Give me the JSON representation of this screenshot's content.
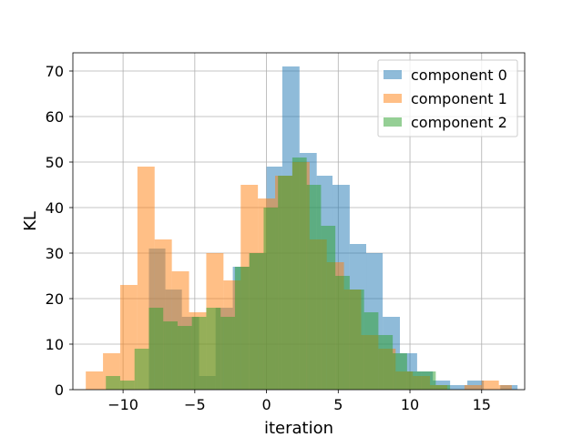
{
  "chart_data": {
    "type": "histogram",
    "title": "",
    "xlabel": "iteration",
    "ylabel": "KL",
    "xlim": [
      -13.5,
      18.0
    ],
    "ylim": [
      0,
      74
    ],
    "x_ticks": [
      -10,
      -5,
      0,
      5,
      10,
      15
    ],
    "x_tick_labels": [
      "−10",
      "−5",
      "0",
      "5",
      "10",
      "15"
    ],
    "y_ticks": [
      0,
      10,
      20,
      30,
      40,
      50,
      60,
      70
    ],
    "y_tick_labels": [
      "0",
      "10",
      "20",
      "30",
      "40",
      "50",
      "60",
      "70"
    ],
    "grid": true,
    "legend_position": "top-right",
    "series": [
      {
        "name": "component 0",
        "color": "#1f77b4",
        "alpha": 0.5,
        "bins": [
          [
            -8.2,
            -7.05,
            31
          ],
          [
            -7.05,
            -5.9,
            22
          ],
          [
            -5.9,
            -4.7,
            16
          ],
          [
            -4.7,
            -3.55,
            3
          ],
          [
            -3.55,
            -2.35,
            18
          ],
          [
            -2.35,
            -1.2,
            27
          ],
          [
            -1.2,
            0,
            30
          ],
          [
            0,
            1.1,
            49
          ],
          [
            1.1,
            2.3,
            71
          ],
          [
            2.3,
            3.5,
            52
          ],
          [
            3.5,
            4.6,
            47
          ],
          [
            4.6,
            5.8,
            45
          ],
          [
            5.8,
            6.95,
            32
          ],
          [
            6.95,
            8.1,
            30
          ],
          [
            8.1,
            9.3,
            16
          ],
          [
            9.3,
            10.5,
            8
          ],
          [
            10.5,
            11.6,
            4
          ],
          [
            11.6,
            12.8,
            2
          ],
          [
            12.8,
            14.0,
            1
          ],
          [
            14.0,
            15.15,
            2
          ],
          [
            15.15,
            16.3,
            0
          ],
          [
            16.3,
            17.5,
            1
          ]
        ]
      },
      {
        "name": "component 1",
        "color": "#ff7f0e",
        "alpha": 0.5,
        "bins": [
          [
            -12.6,
            -11.4,
            4
          ],
          [
            -11.4,
            -10.2,
            8
          ],
          [
            -10.2,
            -9.0,
            23
          ],
          [
            -9.0,
            -7.8,
            49
          ],
          [
            -7.8,
            -6.6,
            33
          ],
          [
            -6.6,
            -5.4,
            26
          ],
          [
            -5.4,
            -4.2,
            17
          ],
          [
            -4.2,
            -3.0,
            30
          ],
          [
            -3.0,
            -1.8,
            24
          ],
          [
            -1.8,
            -0.6,
            45
          ],
          [
            -0.6,
            0.6,
            42
          ],
          [
            0.6,
            1.8,
            47
          ],
          [
            1.8,
            3.0,
            50
          ],
          [
            3.0,
            4.2,
            33
          ],
          [
            4.2,
            5.4,
            28
          ],
          [
            5.4,
            6.6,
            22
          ],
          [
            6.6,
            7.8,
            12
          ],
          [
            7.8,
            9.0,
            9
          ],
          [
            9.0,
            10.2,
            4
          ],
          [
            10.2,
            11.4,
            3
          ],
          [
            11.4,
            12.6,
            1
          ],
          [
            12.6,
            13.8,
            0
          ],
          [
            13.8,
            15.0,
            1
          ],
          [
            15.0,
            16.2,
            2
          ],
          [
            16.2,
            17.1,
            1
          ]
        ]
      },
      {
        "name": "component 2",
        "color": "#2ca02c",
        "alpha": 0.5,
        "bins": [
          [
            -11.2,
            -10.2,
            3
          ],
          [
            -10.2,
            -9.2,
            2
          ],
          [
            -9.2,
            -8.2,
            9
          ],
          [
            -8.2,
            -7.2,
            18
          ],
          [
            -7.2,
            -6.2,
            15
          ],
          [
            -6.2,
            -5.2,
            14
          ],
          [
            -5.2,
            -4.2,
            16
          ],
          [
            -4.2,
            -3.2,
            18
          ],
          [
            -3.2,
            -2.2,
            16
          ],
          [
            -2.2,
            -1.2,
            27
          ],
          [
            -1.2,
            -0.2,
            30
          ],
          [
            -0.2,
            0.8,
            40
          ],
          [
            0.8,
            1.8,
            47
          ],
          [
            1.8,
            2.8,
            51
          ],
          [
            2.8,
            3.8,
            45
          ],
          [
            3.8,
            4.8,
            36
          ],
          [
            4.8,
            5.8,
            25
          ],
          [
            5.8,
            6.8,
            22
          ],
          [
            6.8,
            7.8,
            17
          ],
          [
            7.8,
            8.8,
            12
          ],
          [
            8.8,
            9.8,
            8
          ],
          [
            9.8,
            10.8,
            4
          ],
          [
            10.8,
            11.8,
            4
          ],
          [
            11.8,
            12.8,
            1
          ]
        ]
      }
    ]
  }
}
